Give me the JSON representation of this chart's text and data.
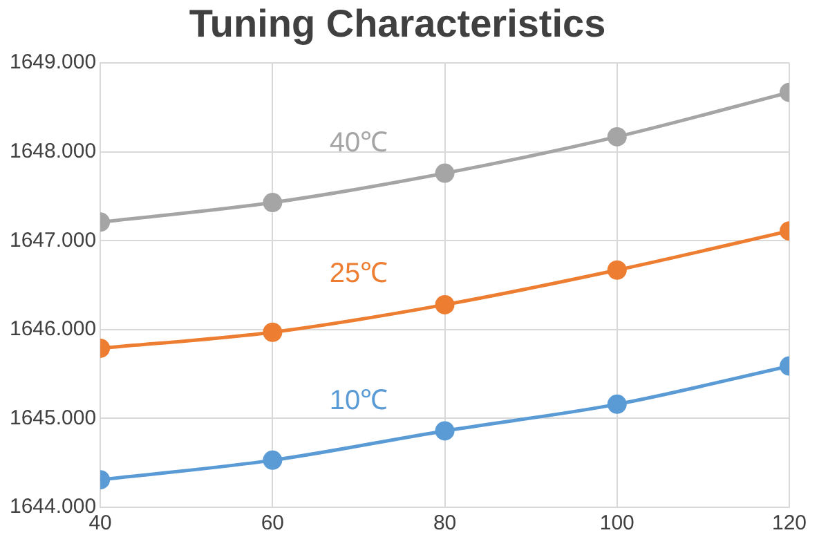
{
  "chart_data": {
    "type": "line",
    "title": "Tuning Characteristics",
    "x": [
      40,
      60,
      80,
      100,
      120
    ],
    "series": [
      {
        "name": "40℃",
        "color": "#a5a5a5",
        "values": [
          1647.21,
          1647.43,
          1647.76,
          1648.17,
          1648.67
        ]
      },
      {
        "name": "25℃",
        "color": "#ed7d31",
        "values": [
          1645.79,
          1645.97,
          1646.28,
          1646.67,
          1647.11
        ]
      },
      {
        "name": "10℃",
        "color": "#5b9bd5",
        "values": [
          1644.31,
          1644.53,
          1644.86,
          1645.16,
          1645.59
        ]
      }
    ],
    "xlim": [
      40,
      120
    ],
    "xticks": [
      40,
      60,
      80,
      100,
      120
    ],
    "ylim": [
      1644,
      1649
    ],
    "yticks": [
      {
        "value": 1644,
        "label": "1644.000"
      },
      {
        "value": 1645,
        "label": "1645.000"
      },
      {
        "value": 1646,
        "label": "1646.000"
      },
      {
        "value": 1647,
        "label": "1647.000"
      },
      {
        "value": 1648,
        "label": "1648.000"
      },
      {
        "value": 1649,
        "label": "1649.000"
      }
    ],
    "grid": true,
    "legend": false,
    "marker": "circle",
    "line_style": "solid"
  }
}
